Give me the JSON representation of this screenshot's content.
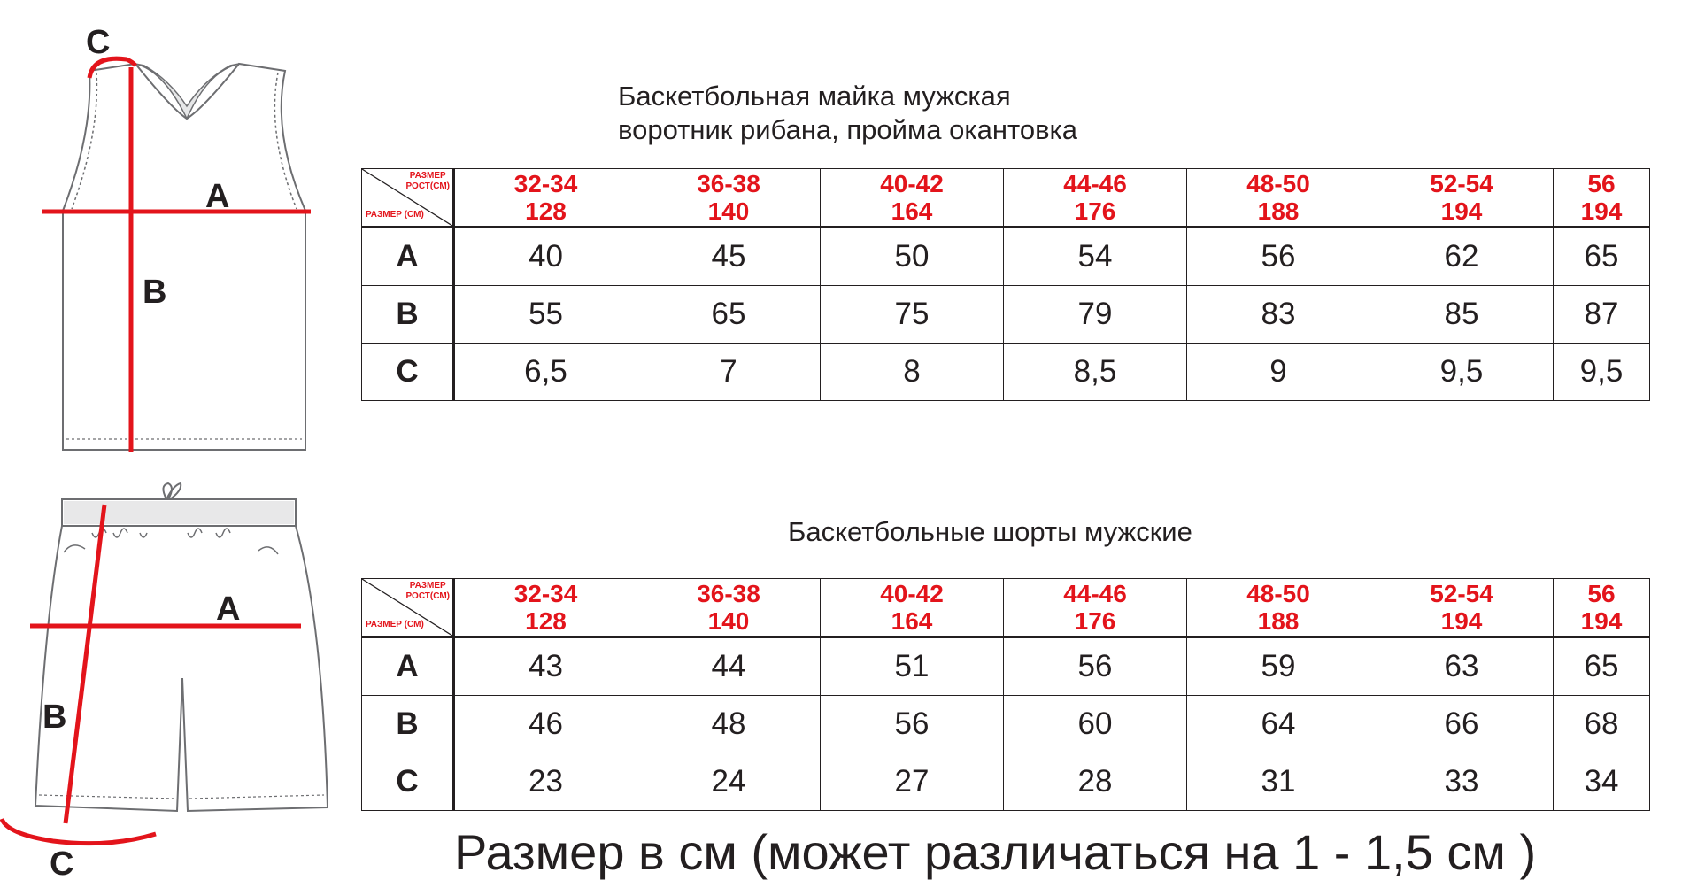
{
  "jersey": {
    "title_line1": "Баскетбольная майка мужская",
    "title_line2": "воротник рибана, пройма окантовка",
    "corner_top_line1": "РАЗМЕР",
    "corner_top_line2": "РОСТ(СМ)",
    "corner_bottom": "РАЗМЕР (СМ)",
    "diagram_labels": {
      "a": "A",
      "b": "B",
      "c": "C"
    },
    "sizes": [
      {
        "size": "32-34",
        "height": "128"
      },
      {
        "size": "36-38",
        "height": "140"
      },
      {
        "size": "40-42",
        "height": "164"
      },
      {
        "size": "44-46",
        "height": "176"
      },
      {
        "size": "48-50",
        "height": "188"
      },
      {
        "size": "52-54",
        "height": "194"
      },
      {
        "size": "56",
        "height": "194"
      }
    ],
    "rows": [
      {
        "label": "A",
        "values": [
          "40",
          "45",
          "50",
          "54",
          "56",
          "62",
          "65"
        ]
      },
      {
        "label": "B",
        "values": [
          "55",
          "65",
          "75",
          "79",
          "83",
          "85",
          "87"
        ]
      },
      {
        "label": "C",
        "values": [
          "6,5",
          "7",
          "8",
          "8,5",
          "9",
          "9,5",
          "9,5"
        ]
      }
    ]
  },
  "shorts": {
    "title": "Баскетбольные шорты мужские",
    "corner_top_line1": "РАЗМЕР",
    "corner_top_line2": "РОСТ(СМ)",
    "corner_bottom": "РАЗМЕР (СМ)",
    "diagram_labels": {
      "a": "A",
      "b": "B",
      "c": "C"
    },
    "sizes": [
      {
        "size": "32-34",
        "height": "128"
      },
      {
        "size": "36-38",
        "height": "140"
      },
      {
        "size": "40-42",
        "height": "164"
      },
      {
        "size": "44-46",
        "height": "176"
      },
      {
        "size": "48-50",
        "height": "188"
      },
      {
        "size": "52-54",
        "height": "194"
      },
      {
        "size": "56",
        "height": "194"
      }
    ],
    "rows": [
      {
        "label": "A",
        "values": [
          "43",
          "44",
          "51",
          "56",
          "59",
          "63",
          "65"
        ]
      },
      {
        "label": "B",
        "values": [
          "46",
          "48",
          "56",
          "60",
          "64",
          "66",
          "68"
        ]
      },
      {
        "label": "C",
        "values": [
          "23",
          "24",
          "27",
          "28",
          "31",
          "33",
          "34"
        ]
      }
    ]
  },
  "footer_note": "Размер в см (может различаться на 1 - 1,5 см )",
  "colors": {
    "accent_red": "#e3141b",
    "line_dark": "#231f20"
  }
}
